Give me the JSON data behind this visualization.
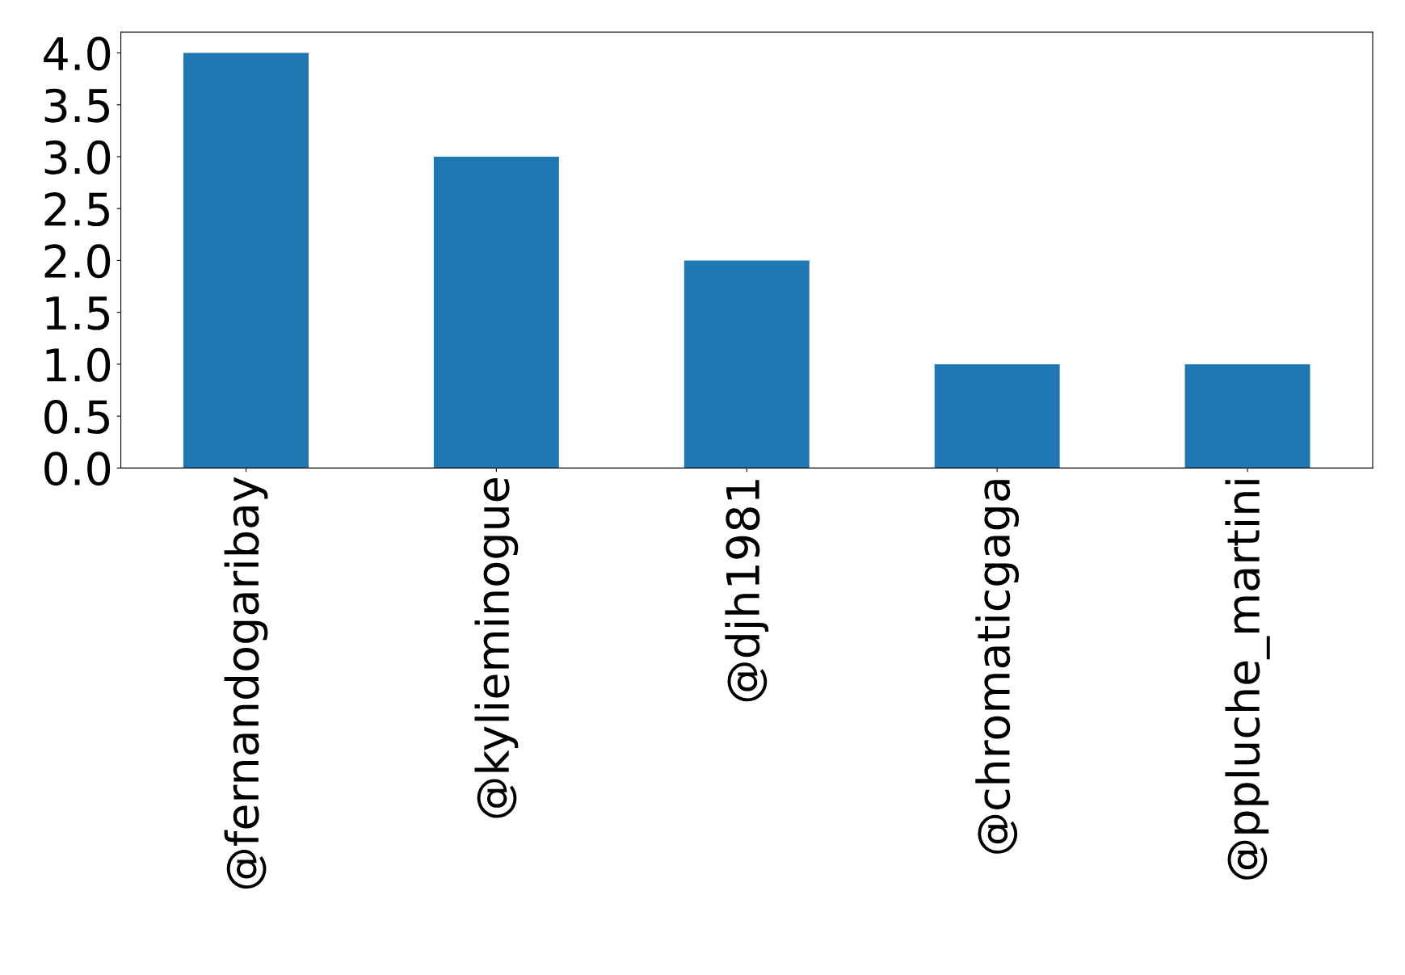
{
  "chart_data": {
    "type": "bar",
    "categories": [
      "@fernandogaribay",
      "@kylieminogue",
      "@djh1981",
      "@chromaticgaga",
      "@ppluche_martini"
    ],
    "values": [
      4,
      3,
      2,
      1,
      1
    ],
    "color": "#1f77b4",
    "ylim": [
      0,
      4.2
    ],
    "yticks": [
      {
        "value": 0,
        "label": "0.0"
      },
      {
        "value": 0.5,
        "label": "0.5"
      },
      {
        "value": 1,
        "label": "1.0"
      },
      {
        "value": 1.5,
        "label": "1.5"
      },
      {
        "value": 2,
        "label": "2.0"
      },
      {
        "value": 2.5,
        "label": "2.5"
      },
      {
        "value": 3,
        "label": "3.0"
      },
      {
        "value": 3.5,
        "label": "3.5"
      },
      {
        "value": 4,
        "label": "4.0"
      }
    ],
    "grid": false,
    "legend": false
  }
}
